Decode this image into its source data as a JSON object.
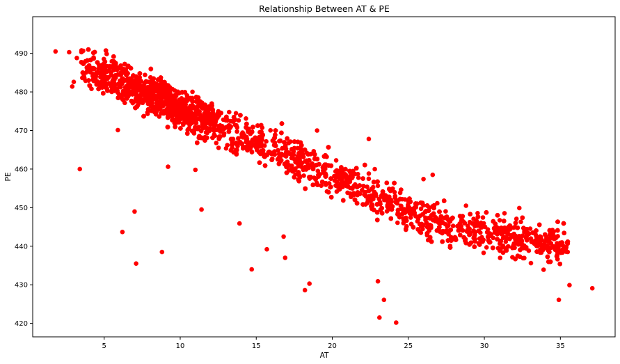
{
  "chart_data": {
    "type": "scatter",
    "title": "Relationship Between AT & PE",
    "xlabel": "AT",
    "ylabel": "PE",
    "xlim": [
      0.3,
      38.6
    ],
    "ylim": [
      416.5,
      499.5
    ],
    "xticks": [
      5,
      10,
      15,
      20,
      25,
      30,
      35
    ],
    "yticks": [
      420,
      430,
      440,
      450,
      460,
      470,
      480,
      490
    ],
    "grid": false,
    "marker_color": "#ff0000",
    "trend": {
      "x_start": 2,
      "y_start": 490,
      "x_end": 37,
      "y_end": 428,
      "spread_pe": 4.5,
      "n_points": 5000
    },
    "points": [
      [
        1.8,
        490.5
      ],
      [
        2.7,
        490.3
      ],
      [
        2.9,
        481.4
      ],
      [
        3.0,
        482.6
      ],
      [
        3.2,
        488.8
      ],
      [
        3.4,
        460.0
      ],
      [
        5.9,
        470.1
      ],
      [
        6.2,
        443.7
      ],
      [
        7.0,
        449.0
      ],
      [
        7.1,
        435.5
      ],
      [
        8.8,
        438.5
      ],
      [
        9.2,
        460.6
      ],
      [
        11.0,
        459.8
      ],
      [
        11.4,
        449.5
      ],
      [
        13.9,
        445.9
      ],
      [
        14.7,
        434.0
      ],
      [
        15.7,
        439.2
      ],
      [
        16.8,
        442.5
      ],
      [
        16.9,
        437.0
      ],
      [
        18.2,
        428.6
      ],
      [
        18.5,
        430.3
      ],
      [
        19.0,
        470.0
      ],
      [
        22.4,
        467.8
      ],
      [
        23.0,
        430.9
      ],
      [
        23.1,
        421.5
      ],
      [
        23.4,
        426.1
      ],
      [
        24.2,
        420.2
      ],
      [
        26.0,
        457.4
      ],
      [
        26.6,
        458.5
      ],
      [
        32.3,
        449.9
      ],
      [
        32.4,
        446.3
      ],
      [
        32.8,
        443.6
      ],
      [
        35.6,
        429.9
      ],
      [
        37.1,
        429.1
      ],
      [
        34.9,
        426.1
      ]
    ]
  }
}
